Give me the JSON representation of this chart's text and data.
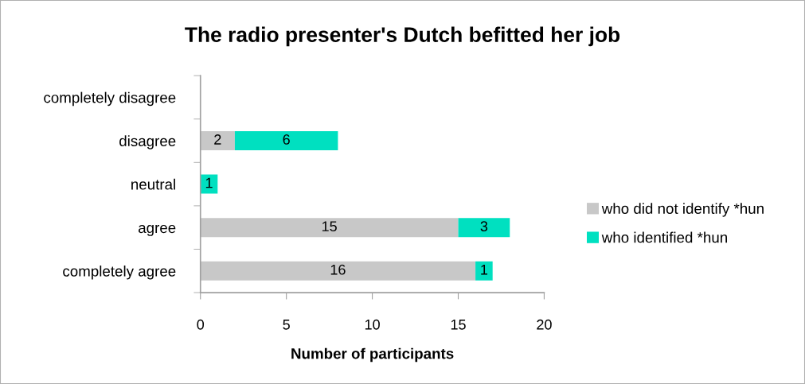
{
  "chart_data": {
    "type": "bar",
    "orientation": "horizontal",
    "stacked": true,
    "title": "The radio presenter's Dutch befitted her job",
    "xlabel": "Number of participants",
    "categories": [
      "completely disagree",
      "disagree",
      "neutral",
      "agree",
      "completely agree"
    ],
    "series": [
      {
        "name": "who did not identify *hun",
        "color": "#c8c8c8",
        "values": [
          0,
          2,
          0,
          15,
          16
        ],
        "value_labels": [
          null,
          "2",
          null,
          "15",
          "16"
        ]
      },
      {
        "name": "who identified *hun",
        "color": "#00e0c0",
        "values": [
          0,
          6,
          1,
          3,
          1
        ],
        "value_labels": [
          null,
          "6",
          "1",
          "3",
          "1"
        ]
      }
    ],
    "xlim": [
      0,
      20
    ],
    "xticks": [
      0,
      5,
      10,
      15,
      20
    ],
    "grid": false,
    "legend": "right"
  }
}
